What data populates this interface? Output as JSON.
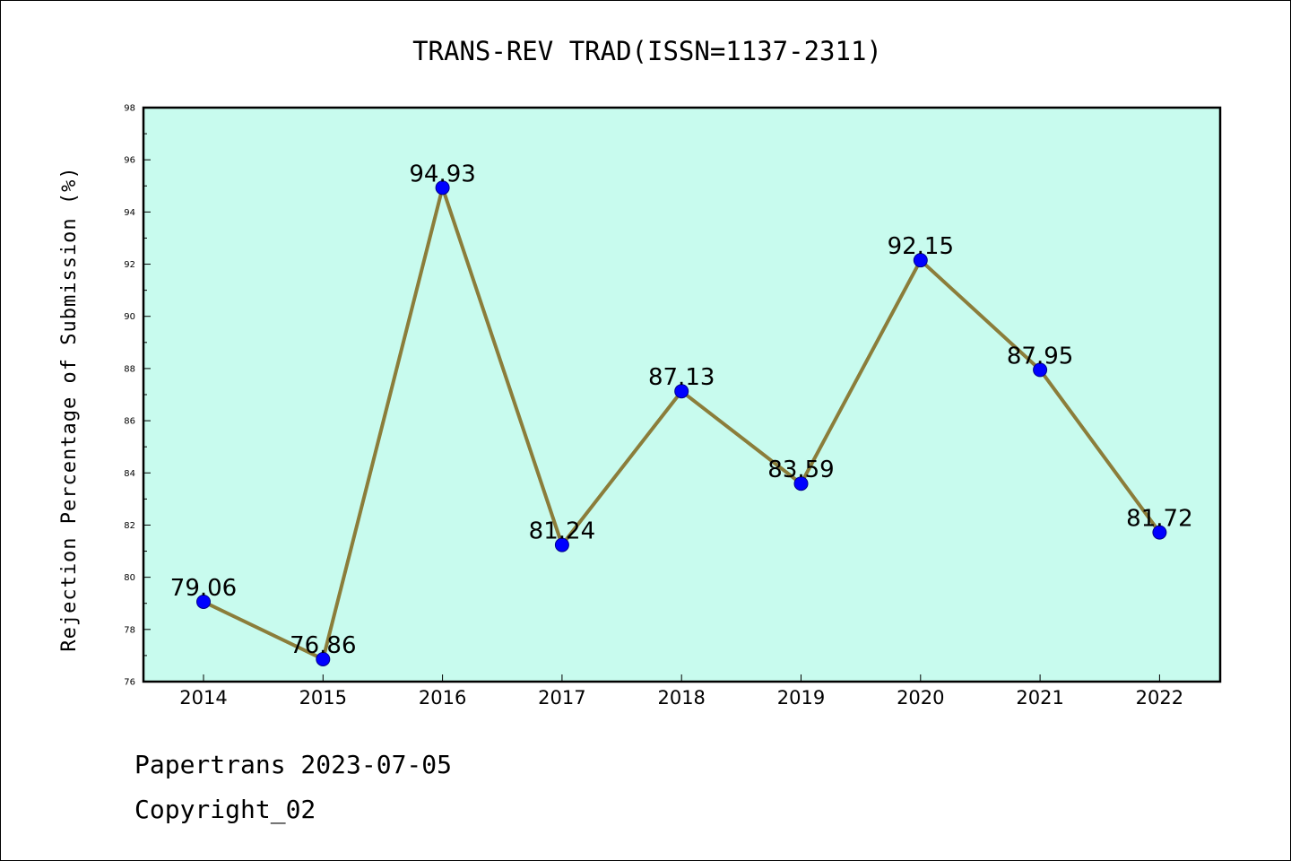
{
  "chart_data": {
    "type": "line",
    "title": "TRANS-REV TRAD(ISSN=1137-2311)",
    "xlabel": "",
    "ylabel": "Rejection Percentage of Submission (%)",
    "categories": [
      "2014",
      "2015",
      "2016",
      "2017",
      "2018",
      "2019",
      "2020",
      "2021",
      "2022"
    ],
    "series": [
      {
        "values": [
          79.06,
          76.86,
          94.93,
          81.24,
          87.13,
          83.59,
          92.15,
          87.95,
          81.72
        ]
      }
    ],
    "data_labels": [
      "79.06",
      "76.86",
      "94.93",
      "81.24",
      "87.13",
      "83.59",
      "92.15",
      "87.95",
      "81.72"
    ],
    "ylim": [
      76,
      98
    ],
    "yticks": [
      76,
      78,
      80,
      82,
      84,
      86,
      88,
      90,
      92,
      94,
      96,
      98
    ],
    "grid": false,
    "legend": "none",
    "colors": {
      "plot_background": "#c8fbee",
      "line": "#8b7d3a",
      "marker": "#0000ff",
      "marker_edge": "#00008b",
      "axes": "#000000"
    }
  },
  "footer": {
    "line1": "Papertrans 2023-07-05",
    "line2": "Copyright_02"
  }
}
